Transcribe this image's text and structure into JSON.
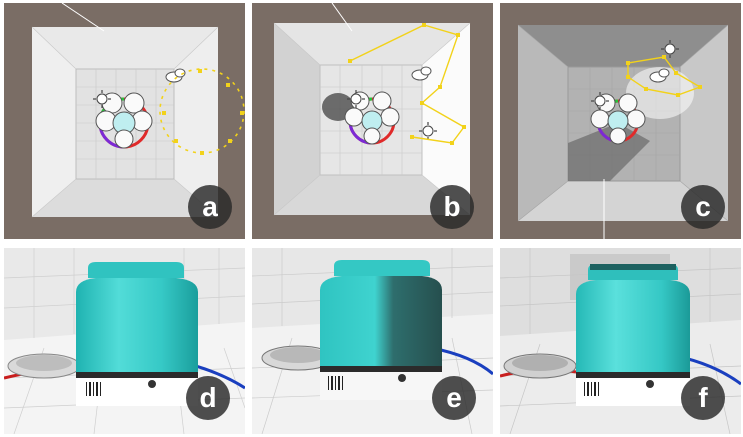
{
  "panels": [
    {
      "label": "a"
    },
    {
      "label": "b"
    },
    {
      "label": "c"
    },
    {
      "label": "d"
    },
    {
      "label": "e"
    },
    {
      "label": "f"
    }
  ],
  "colors": {
    "editor_bg": "#7a6d65",
    "light_gizmo": "#f2d21a",
    "product_teal": "#33c9c6",
    "label_badge": "#2d2d2d",
    "floor_line_blue": "#1a3fbf",
    "floor_line_red": "#c81e1e"
  },
  "icons": [
    "sun-icon",
    "cloud-icon",
    "light-probe-icon"
  ]
}
